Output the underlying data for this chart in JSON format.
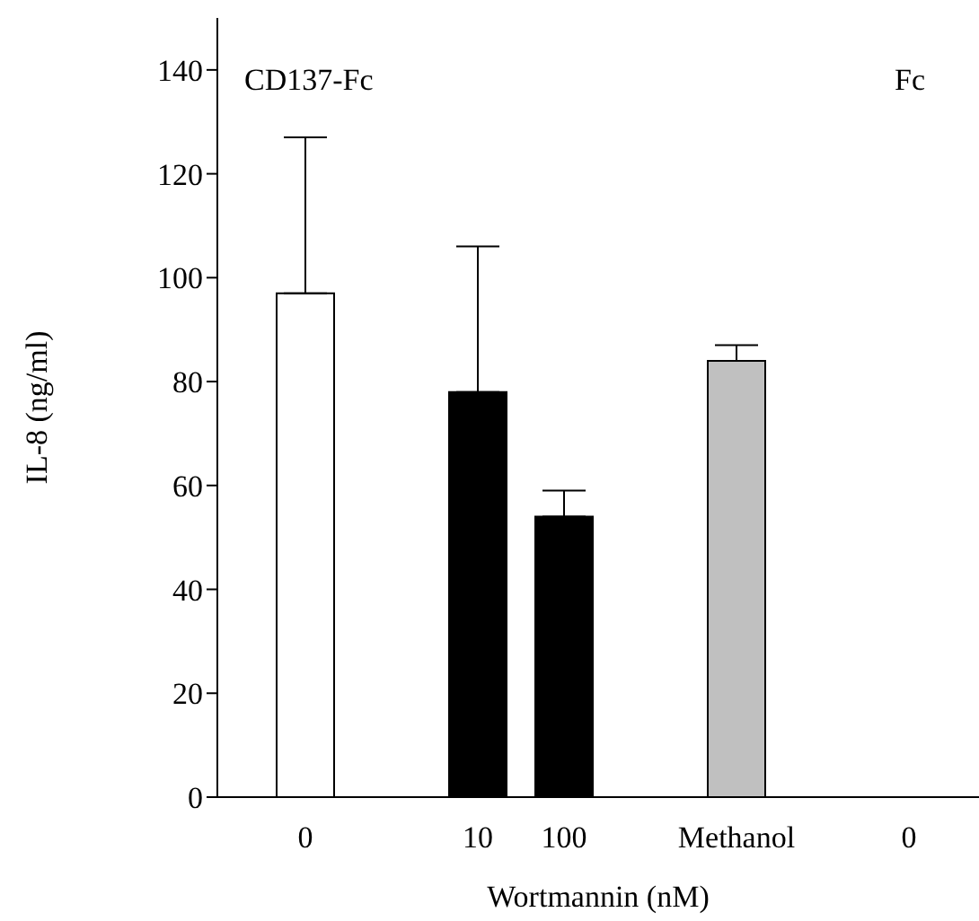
{
  "chart_data": {
    "type": "bar",
    "categories": [
      "0",
      null,
      "10",
      "100",
      null,
      "Methanol",
      null,
      "0"
    ],
    "values": [
      97,
      null,
      78,
      54,
      null,
      84,
      null,
      null
    ],
    "errors": [
      [
        97,
        127
      ],
      null,
      [
        78,
        106
      ],
      [
        54,
        59
      ],
      null,
      [
        84,
        87
      ],
      null,
      null
    ],
    "colors": [
      "#ffffff",
      "#ffffff",
      "#000000",
      "#000000",
      "#ffffff",
      "#c0c0c0",
      "#ffffff",
      "#ffffff"
    ],
    "xlabel": "Wortmannin (nM)",
    "ylabel": "IL-8 (ng/ml)",
    "ylim": [
      0,
      150
    ],
    "yticks": [
      0,
      20,
      40,
      60,
      80,
      100,
      120,
      140
    ],
    "annotations": [
      "CD137-Fc",
      "Fc"
    ],
    "grid": false,
    "legend": false
  }
}
